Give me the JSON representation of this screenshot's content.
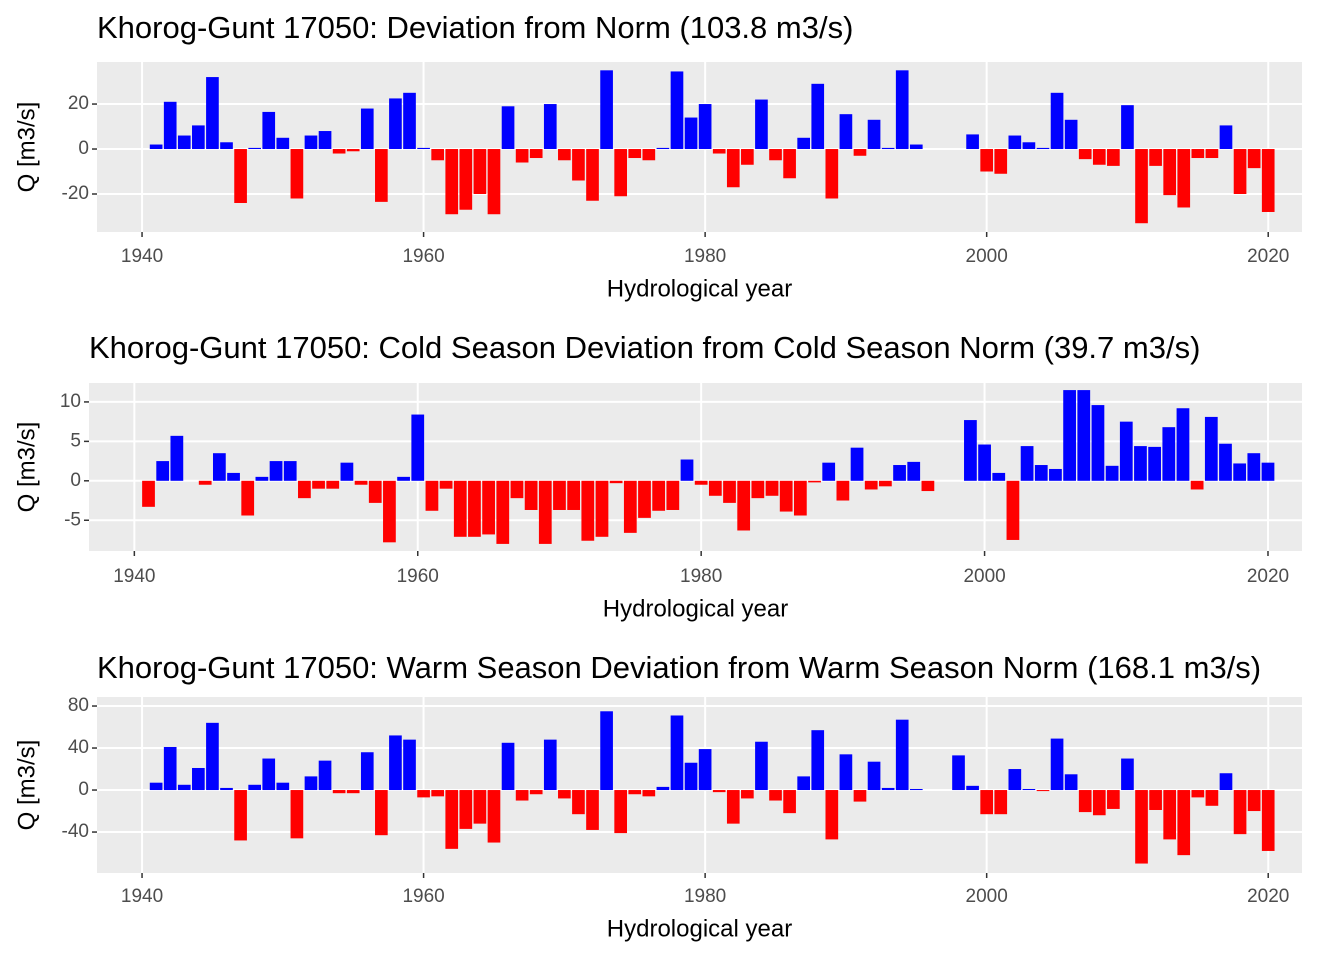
{
  "chart_data": [
    {
      "type": "bar",
      "title": "Khorog-Gunt 17050: Deviation from Norm (103.8 m3/s)",
      "x_label": "Hydrological year",
      "y_label": "Q [m3/s]",
      "x": [
        1941,
        1942,
        1943,
        1944,
        1945,
        1946,
        1947,
        1948,
        1949,
        1950,
        1951,
        1952,
        1953,
        1954,
        1955,
        1956,
        1957,
        1958,
        1959,
        1960,
        1961,
        1962,
        1963,
        1964,
        1965,
        1966,
        1967,
        1968,
        1969,
        1970,
        1971,
        1972,
        1973,
        1974,
        1975,
        1976,
        1977,
        1978,
        1979,
        1980,
        1981,
        1982,
        1983,
        1984,
        1985,
        1986,
        1987,
        1988,
        1989,
        1990,
        1991,
        1992,
        1993,
        1994,
        1995,
        1996,
        1997,
        1998,
        1999,
        2000,
        2001,
        2002,
        2003,
        2004,
        2005,
        2006,
        2007,
        2008,
        2009,
        2010,
        2011,
        2012,
        2013,
        2014,
        2015,
        2016,
        2017,
        2018,
        2019,
        2020
      ],
      "values": [
        2,
        21,
        6,
        10.5,
        32,
        3,
        -24,
        0.5,
        16.5,
        5,
        -22,
        6,
        8,
        -2,
        -1,
        18,
        -23.5,
        22.5,
        25,
        0.5,
        -5,
        -29,
        -27,
        -20,
        -29,
        19,
        -6,
        -4,
        20,
        -5,
        -14,
        -23,
        35,
        -21,
        -4,
        -5,
        0.5,
        34.5,
        14,
        20,
        -2,
        -17,
        -7,
        22,
        -5,
        -13,
        5,
        29,
        -22,
        15.5,
        -3,
        13,
        0.5,
        35,
        2,
        null,
        null,
        null,
        6.5,
        -10,
        -11,
        6,
        3,
        0.5,
        25,
        13,
        -4.5,
        -7,
        -7.5,
        19.5,
        -33,
        -7.5,
        -20.5,
        -26,
        -4,
        -4,
        10.5,
        -20,
        -8.5,
        -28
      ],
      "xlim": [
        1936.8,
        2022.4
      ],
      "ylim": [
        -36.9,
        38.7
      ],
      "xticks": [
        1940,
        1960,
        1980,
        2000,
        2020
      ],
      "yticks": [
        -20,
        0,
        20
      ],
      "positive_color": "#0000ff",
      "negative_color": "#ff0000",
      "grid": true
    },
    {
      "type": "bar",
      "title": "Khorog-Gunt 17050: Cold Season Deviation from Cold Season Norm (39.7 m3/s)",
      "x_label": "Hydrological year",
      "y_label": "Q [m3/s]",
      "x": [
        1941,
        1942,
        1943,
        1944,
        1945,
        1946,
        1947,
        1948,
        1949,
        1950,
        1951,
        1952,
        1953,
        1954,
        1955,
        1956,
        1957,
        1958,
        1959,
        1960,
        1961,
        1962,
        1963,
        1964,
        1965,
        1966,
        1967,
        1968,
        1969,
        1970,
        1971,
        1972,
        1973,
        1974,
        1975,
        1976,
        1977,
        1978,
        1979,
        1980,
        1981,
        1982,
        1983,
        1984,
        1985,
        1986,
        1987,
        1988,
        1989,
        1990,
        1991,
        1992,
        1993,
        1994,
        1995,
        1996,
        1997,
        1998,
        1999,
        2000,
        2001,
        2002,
        2003,
        2004,
        2005,
        2006,
        2007,
        2008,
        2009,
        2010,
        2011,
        2012,
        2013,
        2014,
        2015,
        2016,
        2017,
        2018,
        2019,
        2020
      ],
      "values": [
        -3.3,
        2.5,
        5.7,
        0,
        -0.5,
        3.5,
        1,
        -4.4,
        0.5,
        2.5,
        2.5,
        -2.2,
        -1,
        -1,
        2.3,
        -0.5,
        -2.8,
        -7.8,
        0.5,
        8.4,
        -3.8,
        -1,
        -7.1,
        -7.1,
        -6.8,
        -8,
        -2.2,
        -3.7,
        -8,
        -3.7,
        -3.7,
        -7.6,
        -7.1,
        -0.3,
        -6.6,
        -4.7,
        -3.8,
        -3.7,
        2.7,
        -0.5,
        -1.9,
        -2.8,
        -6.3,
        -2.2,
        -1.9,
        -3.9,
        -4.4,
        -0.2,
        2.3,
        -2.5,
        4.2,
        -1.1,
        -0.7,
        2,
        2.4,
        -1.3,
        null,
        null,
        7.7,
        4.6,
        1,
        -7.5,
        4.4,
        2,
        1.5,
        11.5,
        11.5,
        9.6,
        1.9,
        7.5,
        4.4,
        4.3,
        6.8,
        9.2,
        -1.1,
        8.1,
        4.7,
        2.2,
        3.5,
        2.3
      ],
      "xlim": [
        1936.8,
        2022.4
      ],
      "ylim": [
        -8.9,
        12.4
      ],
      "xticks": [
        1940,
        1960,
        1980,
        2000,
        2020
      ],
      "yticks": [
        -5,
        0,
        5,
        10
      ],
      "positive_color": "#0000ff",
      "negative_color": "#ff0000",
      "grid": true
    },
    {
      "type": "bar",
      "title": "Khorog-Gunt 17050: Warm Season Deviation from Warm Season Norm (168.1 m3/s)",
      "x_label": "Hydrological year",
      "y_label": "Q [m3/s]",
      "x": [
        1941,
        1942,
        1943,
        1944,
        1945,
        1946,
        1947,
        1948,
        1949,
        1950,
        1951,
        1952,
        1953,
        1954,
        1955,
        1956,
        1957,
        1958,
        1959,
        1960,
        1961,
        1962,
        1963,
        1964,
        1965,
        1966,
        1967,
        1968,
        1969,
        1970,
        1971,
        1972,
        1973,
        1974,
        1975,
        1976,
        1977,
        1978,
        1979,
        1980,
        1981,
        1982,
        1983,
        1984,
        1985,
        1986,
        1987,
        1988,
        1989,
        1990,
        1991,
        1992,
        1993,
        1994,
        1995,
        1996,
        1997,
        1998,
        1999,
        2000,
        2001,
        2002,
        2003,
        2004,
        2005,
        2006,
        2007,
        2008,
        2009,
        2010,
        2011,
        2012,
        2013,
        2014,
        2015,
        2016,
        2017,
        2018,
        2019,
        2020
      ],
      "values": [
        7,
        41,
        5,
        21,
        64,
        2,
        -48,
        5,
        30,
        7,
        -46,
        13,
        28,
        -3,
        -3,
        36,
        -43,
        52,
        48,
        -7,
        -6,
        -56,
        -37,
        -32,
        -50,
        45,
        -10,
        -4,
        48,
        -8,
        -23,
        -38,
        75,
        -41,
        -4,
        -6,
        3,
        71,
        26,
        39,
        -2,
        -32,
        -8,
        46,
        -10,
        -22,
        13,
        57,
        -47,
        34,
        -11,
        27,
        2,
        67,
        1,
        null,
        null,
        33,
        4,
        -23,
        -23,
        20,
        1,
        -1,
        49,
        15,
        -21,
        -24,
        -18,
        30,
        -70,
        -19,
        -47,
        -62,
        -7,
        -15,
        16,
        -42,
        -20,
        -58
      ],
      "xlim": [
        1936.8,
        2022.4
      ],
      "ylim": [
        -79,
        88.6
      ],
      "xticks": [
        1940,
        1960,
        1980,
        2000,
        2020
      ],
      "yticks": [
        -40,
        0,
        40,
        80
      ],
      "positive_color": "#0000ff",
      "negative_color": "#ff0000",
      "grid": true
    }
  ]
}
